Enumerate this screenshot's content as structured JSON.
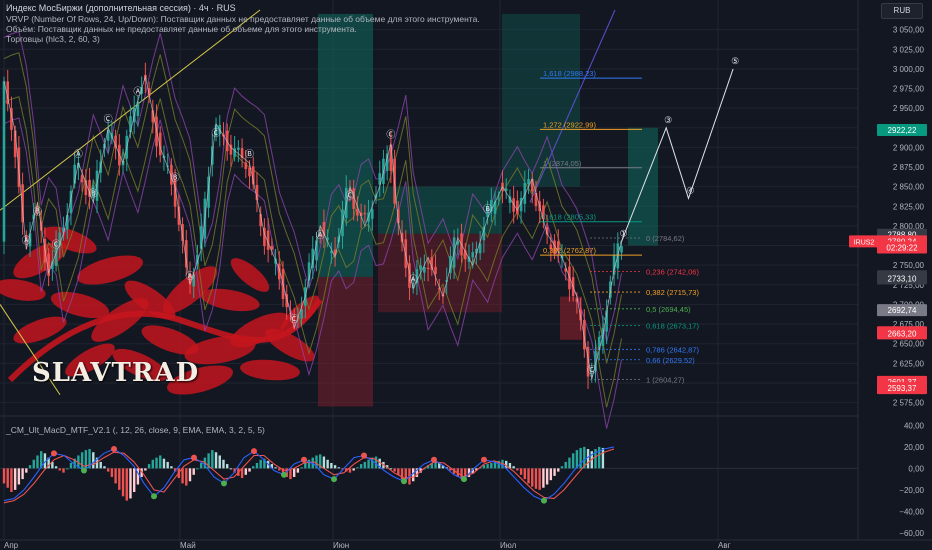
{
  "header": {
    "title": "Индекс МосБиржи (дополнительная сессия) · 4ч · RUS",
    "vrvp": "VRVP (Number Of Rows, 24, Up/Down): Поставщик данных не предоставляет данные об объеме для этого инструмента.",
    "volume": "Объём: Поставщик данных не предоставляет данные об объеме для этого инструмента.",
    "indicator": "Торговцы (hlc3, 2, 60, 3)",
    "currency": "RUB"
  },
  "macd_title": "_CM_Ult_MacD_MTF_V2.1 (, 12, 26, close, 9, EMA, EMA, 3, 2, 5, 5)",
  "logo_text": "SLAVTRAD",
  "colors": {
    "bg": "#131722",
    "up": "#26a69a",
    "down": "#ef5350",
    "wave": "#c9ccd6",
    "zone_green": "#0f6b5e",
    "zone_red": "#7a1f2b",
    "ornament": "#c4151d",
    "macd_line": "#2962ff",
    "signal_line": "#ef5350",
    "fib": "#787b86"
  },
  "chart_data": {
    "type": "candlestick",
    "title": "Индекс МосБиржи (дополнительная сессия) · 4ч · RUS",
    "y_ticks": [
      3050,
      3025,
      3000,
      2975,
      2950,
      2925,
      2900,
      2875,
      2850,
      2825,
      2800,
      2775,
      2750,
      2725,
      2700,
      2675,
      2650,
      2625,
      2600,
      2575
    ],
    "ylim": [
      2563,
      3075
    ],
    "x_ticks": [
      "Апр",
      "Май",
      "Июн",
      "Июл",
      "Авг"
    ],
    "price_series": [
      {
        "i": 0,
        "v": 2985
      },
      {
        "i": 3,
        "v": 2920
      },
      {
        "i": 6,
        "v": 2770
      },
      {
        "i": 9,
        "v": 2830
      },
      {
        "i": 12,
        "v": 2740
      },
      {
        "i": 16,
        "v": 2790
      },
      {
        "i": 20,
        "v": 2880
      },
      {
        "i": 24,
        "v": 2830
      },
      {
        "i": 28,
        "v": 2925
      },
      {
        "i": 32,
        "v": 2880
      },
      {
        "i": 36,
        "v": 2960
      },
      {
        "i": 38,
        "v": 2990
      },
      {
        "i": 42,
        "v": 2900
      },
      {
        "i": 46,
        "v": 2850
      },
      {
        "i": 50,
        "v": 2725
      },
      {
        "i": 53,
        "v": 2770
      },
      {
        "i": 57,
        "v": 2930
      },
      {
        "i": 61,
        "v": 2900
      },
      {
        "i": 66,
        "v": 2880
      },
      {
        "i": 70,
        "v": 2790
      },
      {
        "i": 74,
        "v": 2745
      },
      {
        "i": 78,
        "v": 2670
      },
      {
        "i": 81,
        "v": 2710
      },
      {
        "i": 85,
        "v": 2800
      },
      {
        "i": 89,
        "v": 2760
      },
      {
        "i": 93,
        "v": 2850
      },
      {
        "i": 97,
        "v": 2800
      },
      {
        "i": 101,
        "v": 2850
      },
      {
        "i": 104,
        "v": 2905
      },
      {
        "i": 106,
        "v": 2805
      },
      {
        "i": 110,
        "v": 2720
      },
      {
        "i": 114,
        "v": 2760
      },
      {
        "i": 118,
        "v": 2710
      },
      {
        "i": 122,
        "v": 2785
      },
      {
        "i": 126,
        "v": 2750
      },
      {
        "i": 130,
        "v": 2810
      },
      {
        "i": 134,
        "v": 2850
      },
      {
        "i": 138,
        "v": 2820
      },
      {
        "i": 142,
        "v": 2860
      },
      {
        "i": 146,
        "v": 2790
      },
      {
        "i": 150,
        "v": 2760
      },
      {
        "i": 154,
        "v": 2710
      },
      {
        "i": 158,
        "v": 2605
      },
      {
        "i": 161,
        "v": 2660
      },
      {
        "i": 164,
        "v": 2745
      },
      {
        "i": 166,
        "v": 2780
      }
    ],
    "fib_up": [
      {
        "label": "1,618 (2988,23)",
        "value": 2988.23,
        "color": "#3179f5"
      },
      {
        "label": "1,272 (2922,99)",
        "value": 2922.99,
        "color": "#f0a024"
      },
      {
        "label": "1 (2874,05)",
        "value": 2874.05,
        "color": "#787b86"
      },
      {
        "label": "0,618 (2805,33)",
        "value": 2805.33,
        "color": "#089981"
      },
      {
        "label": "0,382 (2762,87)",
        "value": 2762.87,
        "color": "#f0a024"
      }
    ],
    "fib_down": [
      {
        "label": "0 (2784,62)",
        "value": 2784.62,
        "color": "#787b86"
      },
      {
        "label": "0,236 (2742,06)",
        "value": 2742.06,
        "color": "#f23645"
      },
      {
        "label": "0,382 (2715,73)",
        "value": 2715.73,
        "color": "#f0a024"
      },
      {
        "label": "0,5 (2694,45)",
        "value": 2694.45,
        "color": "#4caf50"
      },
      {
        "label": "0,618 (2673,17)",
        "value": 2673.17,
        "color": "#089981"
      },
      {
        "label": "0,786 (2642,87)",
        "value": 2642.87,
        "color": "#3179f5"
      },
      {
        "label": "0,66 (2629,52)",
        "value": 2629.52,
        "color": "#3179f5"
      },
      {
        "label": "1 (2604,27)",
        "value": 2604.27,
        "color": "#787b86"
      }
    ],
    "projection": [
      {
        "i": 166,
        "v": 2780
      },
      {
        "i": 178,
        "v": 2925
      },
      {
        "i": 184,
        "v": 2835
      },
      {
        "i": 196,
        "v": 3000
      }
    ],
    "projection_labels": [
      "①",
      "③",
      "④",
      "⑤"
    ],
    "right_labels": [
      {
        "text": "2922,22",
        "value": 2922.22,
        "bg": "#089981"
      },
      {
        "text": "2788,80",
        "value": 2788.8,
        "bg": "#363a45"
      },
      {
        "text": "2780,24",
        "value": 2780.24,
        "bg": "#f23645"
      },
      {
        "text": "02:29:22",
        "value": 2772.5,
        "bg": "#f23645"
      },
      {
        "text": "2735,89",
        "value": 2735.89,
        "bg": "#363a45"
      },
      {
        "text": "2733,10",
        "value": 2733.1,
        "bg": "#363a45"
      },
      {
        "text": "2692,74",
        "value": 2692.74,
        "bg": "#787b86"
      },
      {
        "text": "2664,60",
        "value": 2664.6,
        "bg": "#f23645"
      },
      {
        "text": "2663,20",
        "value": 2663.2,
        "bg": "#f23645"
      },
      {
        "text": "2601,37",
        "value": 2601.37,
        "bg": "#f23645"
      },
      {
        "text": "2593,37",
        "value": 2593.37,
        "bg": "#f23645"
      }
    ],
    "symbol_tag": "IRUS2",
    "macd": {
      "y_ticks": [
        40,
        20,
        0,
        -20,
        -40,
        -60
      ],
      "y_tick_labels": [
        "40,00",
        "20,00",
        "0,00",
        "−20,00",
        "−40,00",
        "−60,00"
      ],
      "ylim": [
        -62,
        45
      ],
      "histogram": [
        -14,
        -18,
        -22,
        -20,
        -15,
        -10,
        -4,
        3,
        8,
        12,
        16,
        14,
        10,
        6,
        2,
        -2,
        -4,
        0,
        5,
        9,
        12,
        15,
        17,
        18,
        15,
        10,
        6,
        2,
        -3,
        -8,
        -14,
        -20,
        -26,
        -30,
        -28,
        -22,
        -15,
        -8,
        -2,
        4,
        8,
        10,
        12,
        9,
        6,
        2,
        -3,
        -9,
        -14,
        -16,
        -12,
        -6,
        0,
        5,
        10,
        14,
        17,
        15,
        12,
        8,
        4,
        0,
        -4,
        -7,
        -9,
        -6,
        -3,
        2,
        5,
        8,
        9,
        7,
        4,
        1,
        -2,
        -5,
        -8,
        -10,
        -8,
        -4,
        1,
        5,
        8,
        10,
        12,
        13,
        11,
        8,
        5,
        3,
        1,
        -1,
        -3,
        -4,
        -2,
        1,
        4,
        6,
        8,
        10,
        11,
        9,
        6,
        3,
        0,
        -3,
        -6,
        -10,
        -13,
        -15,
        -12,
        -8,
        -4,
        0,
        3,
        5,
        6,
        5,
        3,
        1,
        -2,
        -5,
        -8,
        -10,
        -11,
        -8,
        -5,
        -2,
        1,
        3,
        4,
        5,
        6,
        7,
        8,
        7,
        5,
        2,
        -2,
        -6,
        -10,
        -14,
        -17,
        -19,
        -20,
        -18,
        -15,
        -11,
        -7,
        -3,
        2,
        6,
        10,
        14,
        17,
        19,
        20,
        18,
        16,
        18,
        20,
        19
      ],
      "macd_line": [
        -30,
        -28,
        -20,
        -8,
        5,
        14,
        12,
        4,
        -2,
        6,
        14,
        18,
        12,
        2,
        -14,
        -26,
        -18,
        -4,
        8,
        10,
        4,
        -8,
        -14,
        -4,
        10,
        16,
        8,
        -2,
        -6,
        4,
        8,
        4,
        -6,
        -10,
        0,
        10,
        12,
        6,
        -2,
        -8,
        -12,
        -4,
        4,
        8,
        2,
        -6,
        -10,
        0,
        8,
        6,
        2,
        -8,
        -18,
        -26,
        -30,
        -24,
        -14,
        -2,
        8,
        14,
        18,
        20
      ],
      "signal_line": [
        -32,
        -30,
        -24,
        -14,
        -2,
        8,
        12,
        8,
        2,
        4,
        10,
        15,
        14,
        6,
        -6,
        -20,
        -22,
        -10,
        2,
        8,
        6,
        -2,
        -10,
        -8,
        2,
        12,
        12,
        4,
        -2,
        0,
        5,
        6,
        0,
        -6,
        -4,
        4,
        10,
        9,
        3,
        -4,
        -9,
        -8,
        0,
        6,
        5,
        -2,
        -8,
        -4,
        4,
        7,
        4,
        -3,
        -12,
        -21,
        -27,
        -28,
        -20,
        -9,
        2,
        10,
        15,
        18
      ]
    }
  }
}
